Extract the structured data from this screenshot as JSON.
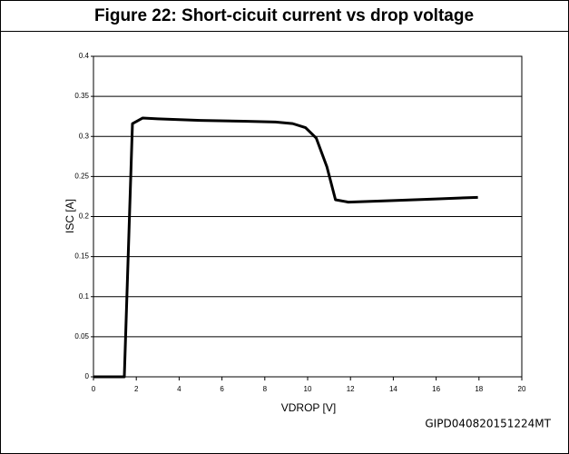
{
  "chart_data": {
    "type": "line",
    "title": "Figure 22: Short-cicuit current vs drop voltage",
    "x_label": "VDROP [V]",
    "y_label": "ISC [A]",
    "footnote": "GIPD040820151224MT",
    "x": [
      0,
      1.44,
      1.82,
      2.3,
      3,
      5,
      7,
      8.5,
      9.3,
      9.9,
      10.4,
      10.9,
      11.3,
      11.9,
      14,
      16,
      17.95
    ],
    "values": [
      0,
      0,
      0.316,
      0.323,
      0.322,
      0.32,
      0.319,
      0.318,
      0.316,
      0.311,
      0.298,
      0.262,
      0.221,
      0.218,
      0.22,
      0.222,
      0.224
    ],
    "color": "#000000",
    "xlim": [
      0,
      20
    ],
    "xticks": [
      0,
      2,
      4,
      6,
      8,
      10,
      12,
      14,
      16,
      18,
      20
    ],
    "ylim": [
      0,
      0.4
    ],
    "yticks": [
      0,
      0.05,
      0.1,
      0.15,
      0.2,
      0.25,
      0.3,
      0.35,
      0.4
    ],
    "grid": true
  }
}
